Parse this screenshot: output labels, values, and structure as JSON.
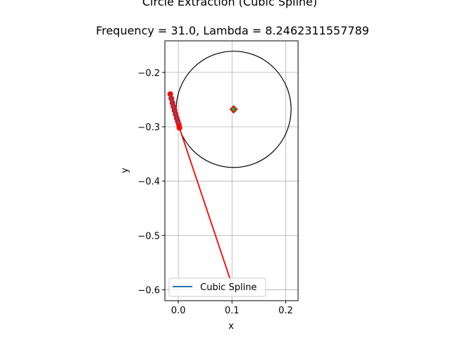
{
  "chart_data": {
    "type": "line",
    "title": "Circle Extraction (Cubic Spline)",
    "subtitle": "Frequency = 31.0, Lambda = 8.2462311557789",
    "xlabel": "x",
    "ylabel": "y",
    "xlim": [
      -0.025,
      0.223
    ],
    "ylim": [
      -0.62,
      -0.142
    ],
    "xticks": [
      0.0,
      0.1,
      0.2
    ],
    "xtick_labels": [
      "0.0",
      "0.1",
      "0.2"
    ],
    "yticks": [
      -0.2,
      -0.3,
      -0.4,
      -0.5,
      -0.6
    ],
    "ytick_labels": [
      "−0.2",
      "−0.3",
      "−0.4",
      "−0.5",
      "−0.6"
    ],
    "grid": true,
    "legend": {
      "position": "lower-left",
      "entries": [
        {
          "label": "Cubic Spline",
          "color": "#1f77b4"
        }
      ]
    },
    "points": {
      "color": "#ff0000",
      "x": [
        -0.015,
        -0.013,
        -0.011,
        -0.009,
        -0.007,
        -0.005,
        -0.003,
        -0.001,
        0.001,
        0.002
      ],
      "y": [
        -0.24,
        -0.248,
        -0.256,
        -0.263,
        -0.27,
        -0.277,
        -0.284,
        -0.29,
        -0.296,
        -0.302
      ]
    },
    "red_line": {
      "color": "#ff0000",
      "x": [
        -0.015,
        -0.013,
        -0.011,
        -0.009,
        -0.007,
        -0.005,
        -0.003,
        -0.001,
        0.001,
        0.002,
        0.098
      ],
      "y": [
        -0.24,
        -0.248,
        -0.256,
        -0.263,
        -0.27,
        -0.277,
        -0.284,
        -0.29,
        -0.296,
        -0.302,
        -0.585
      ]
    },
    "spline": {
      "color": "#1f77b4",
      "x": [
        -0.015,
        -0.011,
        -0.007,
        -0.003,
        0.001
      ],
      "y": [
        -0.242,
        -0.256,
        -0.27,
        -0.284,
        -0.296
      ]
    },
    "circle": {
      "cx": 0.103,
      "cy": -0.268,
      "r": 0.107,
      "color": "#000000"
    },
    "center": {
      "x": 0.103,
      "y": -0.268,
      "marker_color": "#ff0000",
      "inner_color": "#2ca02c"
    }
  }
}
